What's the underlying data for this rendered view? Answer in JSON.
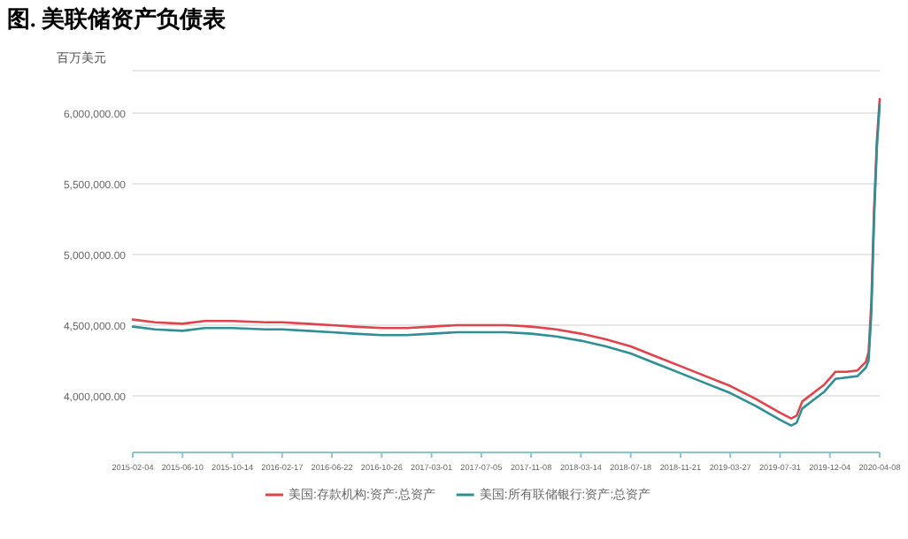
{
  "chart_data": {
    "type": "line",
    "title": "图. 美联储资产负债表",
    "ylabel": "百万美元",
    "x": [
      "2015-02-04",
      "2015-04-01",
      "2015-06-10",
      "2015-08-05",
      "2015-10-14",
      "2016-01-06",
      "2016-02-17",
      "2016-04-20",
      "2016-06-22",
      "2016-08-17",
      "2016-10-26",
      "2016-12-28",
      "2017-03-01",
      "2017-05-03",
      "2017-07-05",
      "2017-09-06",
      "2017-11-08",
      "2018-01-10",
      "2018-03-14",
      "2018-05-16",
      "2018-07-18",
      "2018-09-19",
      "2018-11-21",
      "2019-01-23",
      "2019-03-27",
      "2019-05-29",
      "2019-07-31",
      "2019-08-28",
      "2019-09-11",
      "2019-09-25",
      "2019-10-23",
      "2019-11-20",
      "2019-12-18",
      "2020-01-15",
      "2020-02-12",
      "2020-03-04",
      "2020-03-11",
      "2020-03-18",
      "2020-03-25",
      "2020-04-01",
      "2020-04-08"
    ],
    "series": [
      {
        "name": "美国:存款机构:资产:总资产",
        "color": "#e0434b",
        "values": [
          4540000,
          4520000,
          4510000,
          4530000,
          4530000,
          4520000,
          4520000,
          4510000,
          4500000,
          4490000,
          4480000,
          4480000,
          4490000,
          4500000,
          4500000,
          4500000,
          4490000,
          4470000,
          4440000,
          4400000,
          4350000,
          4280000,
          4210000,
          4140000,
          4070000,
          3980000,
          3880000,
          3840000,
          3860000,
          3960000,
          4020000,
          4080000,
          4170000,
          4170000,
          4180000,
          4240000,
          4310000,
          4670000,
          5330000,
          5810000,
          6100000
        ]
      },
      {
        "name": "美国:所有联储银行:资产:总资产",
        "color": "#2f8f95",
        "values": [
          4490000,
          4470000,
          4460000,
          4480000,
          4480000,
          4470000,
          4470000,
          4460000,
          4450000,
          4440000,
          4430000,
          4430000,
          4440000,
          4450000,
          4450000,
          4450000,
          4440000,
          4420000,
          4390000,
          4350000,
          4300000,
          4230000,
          4160000,
          4090000,
          4020000,
          3930000,
          3830000,
          3790000,
          3810000,
          3910000,
          3970000,
          4030000,
          4120000,
          4130000,
          4140000,
          4200000,
          4250000,
          4590000,
          5270000,
          5760000,
          6060000
        ]
      }
    ],
    "xlim": [
      "2015-02-04",
      "2020-04-08"
    ],
    "xticks": [
      "2015-02-04",
      "2015-06-10",
      "2015-10-14",
      "2016-02-17",
      "2016-06-22",
      "2016-10-26",
      "2017-03-01",
      "2017-07-05",
      "2017-11-08",
      "2018-03-14",
      "2018-07-18",
      "2018-11-21",
      "2019-03-27",
      "2019-07-31",
      "2019-12-04",
      "2020-04-08"
    ],
    "ylim": [
      3600000,
      6300000
    ],
    "yticks": [
      {
        "value": 4000000,
        "label": "4,000,000.00"
      },
      {
        "value": 4500000,
        "label": "4,500,000.00"
      },
      {
        "value": 5000000,
        "label": "5,000,000.00"
      },
      {
        "value": 5500000,
        "label": "5,500,000.00"
      },
      {
        "value": 6000000,
        "label": "6,000,000.00"
      }
    ],
    "grid": "y",
    "legend": "bottom",
    "marker": "none",
    "line_style": "solid"
  }
}
